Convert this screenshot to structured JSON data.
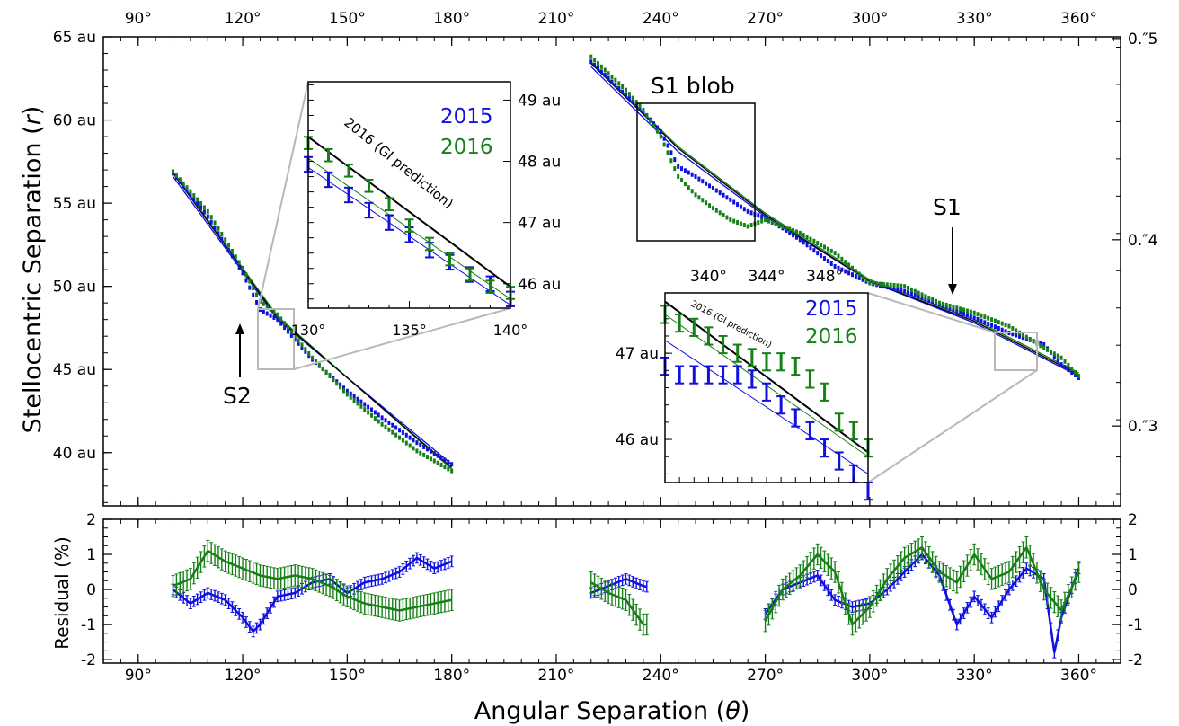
{
  "chart_data": [
    {
      "type": "scatter",
      "panel": "main",
      "ylabel": "Stellocentric Separation (r)",
      "xlim": [
        80,
        372
      ],
      "ylim": [
        36.8,
        65
      ],
      "x_ticks": [
        "90°",
        "120°",
        "150°",
        "180°",
        "210°",
        "240°",
        "270°",
        "300°",
        "330°",
        "360°"
      ],
      "x_tick_values": [
        90,
        120,
        150,
        180,
        210,
        240,
        270,
        300,
        330,
        360
      ],
      "y_ticks": [
        "40 au",
        "45 au",
        "50 au",
        "55 au",
        "60 au",
        "65 au"
      ],
      "y_tick_values": [
        40,
        45,
        50,
        55,
        60,
        65
      ],
      "right_ticks": [
        "0.″3",
        "0.″4",
        "0.″5"
      ],
      "right_tick_values": [
        41.6,
        52.8,
        64.9
      ],
      "colors": {
        "2015": "#1010e0",
        "2016": "#168016",
        "prediction": "#000000"
      },
      "series": [
        {
          "name": "2015",
          "arm": "S2",
          "x": [
            100,
            110,
            120,
            125,
            130,
            140,
            150,
            160,
            170,
            180
          ],
          "y": [
            56.8,
            54.2,
            50.8,
            48.6,
            48.0,
            45.6,
            43.7,
            42.1,
            40.6,
            39.3
          ]
        },
        {
          "name": "2016",
          "arm": "S2",
          "x": [
            100,
            110,
            120,
            125,
            130,
            140,
            150,
            160,
            170,
            180
          ],
          "y": [
            56.9,
            54.5,
            51.1,
            49.1,
            48.3,
            45.7,
            43.5,
            41.7,
            40.1,
            38.9
          ]
        },
        {
          "name": "2015",
          "arm": "S1",
          "x": [
            220,
            225,
            230,
            235,
            240,
            245,
            250,
            255,
            260,
            265,
            270,
            275,
            280,
            290,
            300,
            310,
            320,
            330,
            340,
            350,
            355,
            360
          ],
          "y": [
            63.5,
            62.5,
            61.5,
            60.5,
            59.3,
            57.2,
            56.6,
            55.9,
            55.2,
            54.5,
            54.1,
            53.5,
            52.8,
            51.2,
            50.2,
            49.7,
            48.9,
            48.1,
            47.2,
            46.5,
            45.3,
            44.5
          ]
        },
        {
          "name": "2016",
          "arm": "S1",
          "x": [
            220,
            225,
            230,
            235,
            240,
            245,
            250,
            255,
            260,
            265,
            270,
            275,
            280,
            290,
            300,
            310,
            320,
            330,
            340,
            350,
            355,
            360
          ],
          "y": [
            63.8,
            62.8,
            61.8,
            60.6,
            59.0,
            56.6,
            55.5,
            54.7,
            54.0,
            53.6,
            54.0,
            53.6,
            53.2,
            52.0,
            50.2,
            50.0,
            49.0,
            48.4,
            47.6,
            46.3,
            45.7,
            44.6
          ]
        }
      ],
      "lines": [
        {
          "name": "2015 fit",
          "x": [
            100,
            130,
            180
          ],
          "y": [
            56.6,
            48.0,
            39.3
          ]
        },
        {
          "name": "2016 fit",
          "x": [
            100,
            130,
            180
          ],
          "y": [
            56.9,
            48.2,
            39.0
          ]
        },
        {
          "name": "2016 (GI prediction)",
          "x": [
            100,
            130,
            180
          ],
          "y": [
            56.8,
            48.1,
            39.1
          ]
        },
        {
          "name": "2015 fit",
          "x": [
            220,
            245,
            270,
            300,
            330,
            360
          ],
          "y": [
            63.2,
            58.1,
            54.2,
            50.3,
            47.8,
            44.6
          ]
        },
        {
          "name": "2016 fit",
          "x": [
            220,
            245,
            270,
            300,
            330,
            360
          ],
          "y": [
            63.5,
            58.4,
            54.4,
            50.4,
            48.0,
            44.8
          ]
        },
        {
          "name": "2016 (GI prediction)",
          "x": [
            220,
            245,
            270,
            300,
            330,
            360
          ],
          "y": [
            63.4,
            58.3,
            54.3,
            50.3,
            47.9,
            44.7
          ]
        }
      ],
      "annotations": {
        "s1_blob": "S1 blob",
        "s1": "S1",
        "s2": "S2"
      }
    },
    {
      "type": "scatter",
      "panel": "inset-left",
      "xlim": [
        130,
        140
      ],
      "ylim": [
        45.6,
        49.3
      ],
      "x_ticks": [
        "130°",
        "135°",
        "140°"
      ],
      "x_tick_values": [
        130,
        135,
        140
      ],
      "y_ticks": [
        "46 au",
        "47 au",
        "48 au",
        "49 au"
      ],
      "y_tick_values": [
        46,
        47,
        48,
        49
      ],
      "legend": [
        "2015",
        "2016"
      ],
      "prediction_label": "2016 (GI prediction)",
      "series": [
        {
          "name": "2015",
          "x": [
            130,
            131,
            132,
            133,
            134,
            135,
            136,
            137,
            138,
            139,
            140
          ],
          "y": [
            47.95,
            47.7,
            47.45,
            47.2,
            47.0,
            46.8,
            46.55,
            46.35,
            46.15,
            46.0,
            45.75
          ],
          "err": 0.12
        },
        {
          "name": "2016",
          "x": [
            130,
            131,
            132,
            133,
            134,
            135,
            136,
            137,
            138,
            139,
            140
          ],
          "y": [
            48.3,
            48.1,
            47.85,
            47.6,
            47.3,
            46.95,
            46.65,
            46.4,
            46.15,
            45.95,
            45.85
          ],
          "err": 0.1
        }
      ],
      "lines": [
        {
          "name": "2016 (GI prediction)",
          "x": [
            130,
            140
          ],
          "y": [
            48.4,
            45.95
          ]
        },
        {
          "name": "2015 fit",
          "x": [
            130,
            140
          ],
          "y": [
            47.9,
            45.65
          ]
        },
        {
          "name": "2016 fit",
          "x": [
            130,
            140
          ],
          "y": [
            48.05,
            45.75
          ]
        }
      ]
    },
    {
      "type": "scatter",
      "panel": "inset-right",
      "xlim": [
        337,
        351
      ],
      "ylim": [
        45.5,
        47.7
      ],
      "x_ticks": [
        "340°",
        "344°",
        "348°"
      ],
      "x_tick_values": [
        340,
        344,
        348
      ],
      "y_ticks": [
        "46 au",
        "47 au"
      ],
      "y_tick_values": [
        46,
        47
      ],
      "legend": [
        "2015",
        "2016"
      ],
      "prediction_label": "2016 (GI prediction)",
      "series": [
        {
          "name": "2015",
          "x": [
            337,
            338,
            339,
            340,
            341,
            342,
            343,
            344,
            345,
            346,
            347,
            348,
            349,
            350,
            351
          ],
          "y": [
            46.85,
            46.75,
            46.75,
            46.75,
            46.75,
            46.75,
            46.7,
            46.55,
            46.4,
            46.25,
            46.1,
            45.9,
            45.75,
            45.6,
            45.4
          ],
          "err": 0.1
        },
        {
          "name": "2016",
          "x": [
            337,
            338,
            339,
            340,
            341,
            342,
            343,
            344,
            345,
            346,
            347,
            348,
            349,
            350,
            351
          ],
          "y": [
            47.45,
            47.35,
            47.3,
            47.2,
            47.1,
            47.0,
            46.95,
            46.9,
            46.9,
            46.85,
            46.7,
            46.55,
            46.2,
            46.1,
            45.9
          ],
          "err": 0.1
        }
      ],
      "lines": [
        {
          "name": "2016 (GI prediction)",
          "x": [
            337,
            351
          ],
          "y": [
            47.6,
            45.85
          ]
        },
        {
          "name": "2015 fit",
          "x": [
            337,
            351
          ],
          "y": [
            47.15,
            45.6
          ]
        },
        {
          "name": "2016 fit",
          "x": [
            337,
            351
          ],
          "y": [
            47.45,
            45.8
          ]
        }
      ]
    },
    {
      "type": "scatter",
      "panel": "residual",
      "xlabel": "Angular Separation (θ)",
      "ylabel": "Residual (%)",
      "xlim": [
        80,
        372
      ],
      "ylim": [
        -2.1,
        2.0
      ],
      "y_ticks": [
        "-2",
        "-1",
        "0",
        "1",
        "2"
      ],
      "y_tick_values": [
        -2,
        -1,
        0,
        1,
        2
      ],
      "series": [
        {
          "name": "2015",
          "x": [
            100,
            105,
            110,
            115,
            120,
            123,
            125,
            130,
            135,
            140,
            145,
            150,
            155,
            160,
            165,
            170,
            175,
            180,
            220,
            225,
            230,
            235,
            270,
            275,
            280,
            285,
            290,
            295,
            300,
            305,
            310,
            315,
            320,
            325,
            330,
            335,
            340,
            345,
            350,
            353,
            355,
            360
          ],
          "y": [
            0.0,
            -0.4,
            -0.1,
            -0.3,
            -0.8,
            -1.2,
            -1.0,
            -0.2,
            -0.1,
            0.2,
            0.3,
            -0.1,
            0.2,
            0.3,
            0.5,
            0.9,
            0.6,
            0.8,
            -0.1,
            0.1,
            0.3,
            0.1,
            -0.7,
            0.0,
            0.2,
            0.4,
            -0.3,
            -0.5,
            -0.4,
            0.0,
            0.5,
            1.0,
            0.4,
            -1.0,
            -0.2,
            -0.8,
            0.0,
            0.6,
            0.3,
            -1.8,
            -0.8,
            0.6
          ],
          "err": 0.15
        },
        {
          "name": "2016",
          "x": [
            100,
            105,
            110,
            115,
            120,
            125,
            130,
            135,
            140,
            145,
            150,
            155,
            160,
            165,
            170,
            175,
            180,
            220,
            225,
            230,
            235,
            270,
            275,
            280,
            285,
            290,
            295,
            300,
            305,
            310,
            315,
            320,
            325,
            330,
            335,
            340,
            345,
            350,
            355,
            360
          ],
          "y": [
            0.1,
            0.3,
            1.1,
            0.8,
            0.6,
            0.4,
            0.3,
            0.4,
            0.3,
            0.1,
            -0.2,
            -0.4,
            -0.5,
            -0.6,
            -0.5,
            -0.4,
            -0.3,
            0.2,
            -0.1,
            -0.3,
            -1.0,
            -0.9,
            0.0,
            0.4,
            1.0,
            0.5,
            -1.0,
            -0.5,
            0.3,
            0.9,
            1.2,
            0.5,
            0.2,
            1.0,
            0.3,
            0.5,
            1.2,
            0.0,
            -0.6,
            0.5
          ],
          "err": 0.3
        }
      ]
    }
  ],
  "labels": {
    "ylabel_main": "Stellocentric Separation (",
    "ylabel_main_var": "r",
    "ylabel_close": ")",
    "xlabel": "Angular Separation (",
    "xlabel_var": "θ",
    "xlabel_close": ")",
    "ylabel_residual": "Residual (%)",
    "s1_blob": "S1 blob",
    "s1": "S1",
    "s2": "S2",
    "legend_2015": "2015",
    "legend_2016": "2016",
    "prediction_left": "2016 (GI prediction)",
    "prediction_right": "2016 (GI prediction)"
  }
}
